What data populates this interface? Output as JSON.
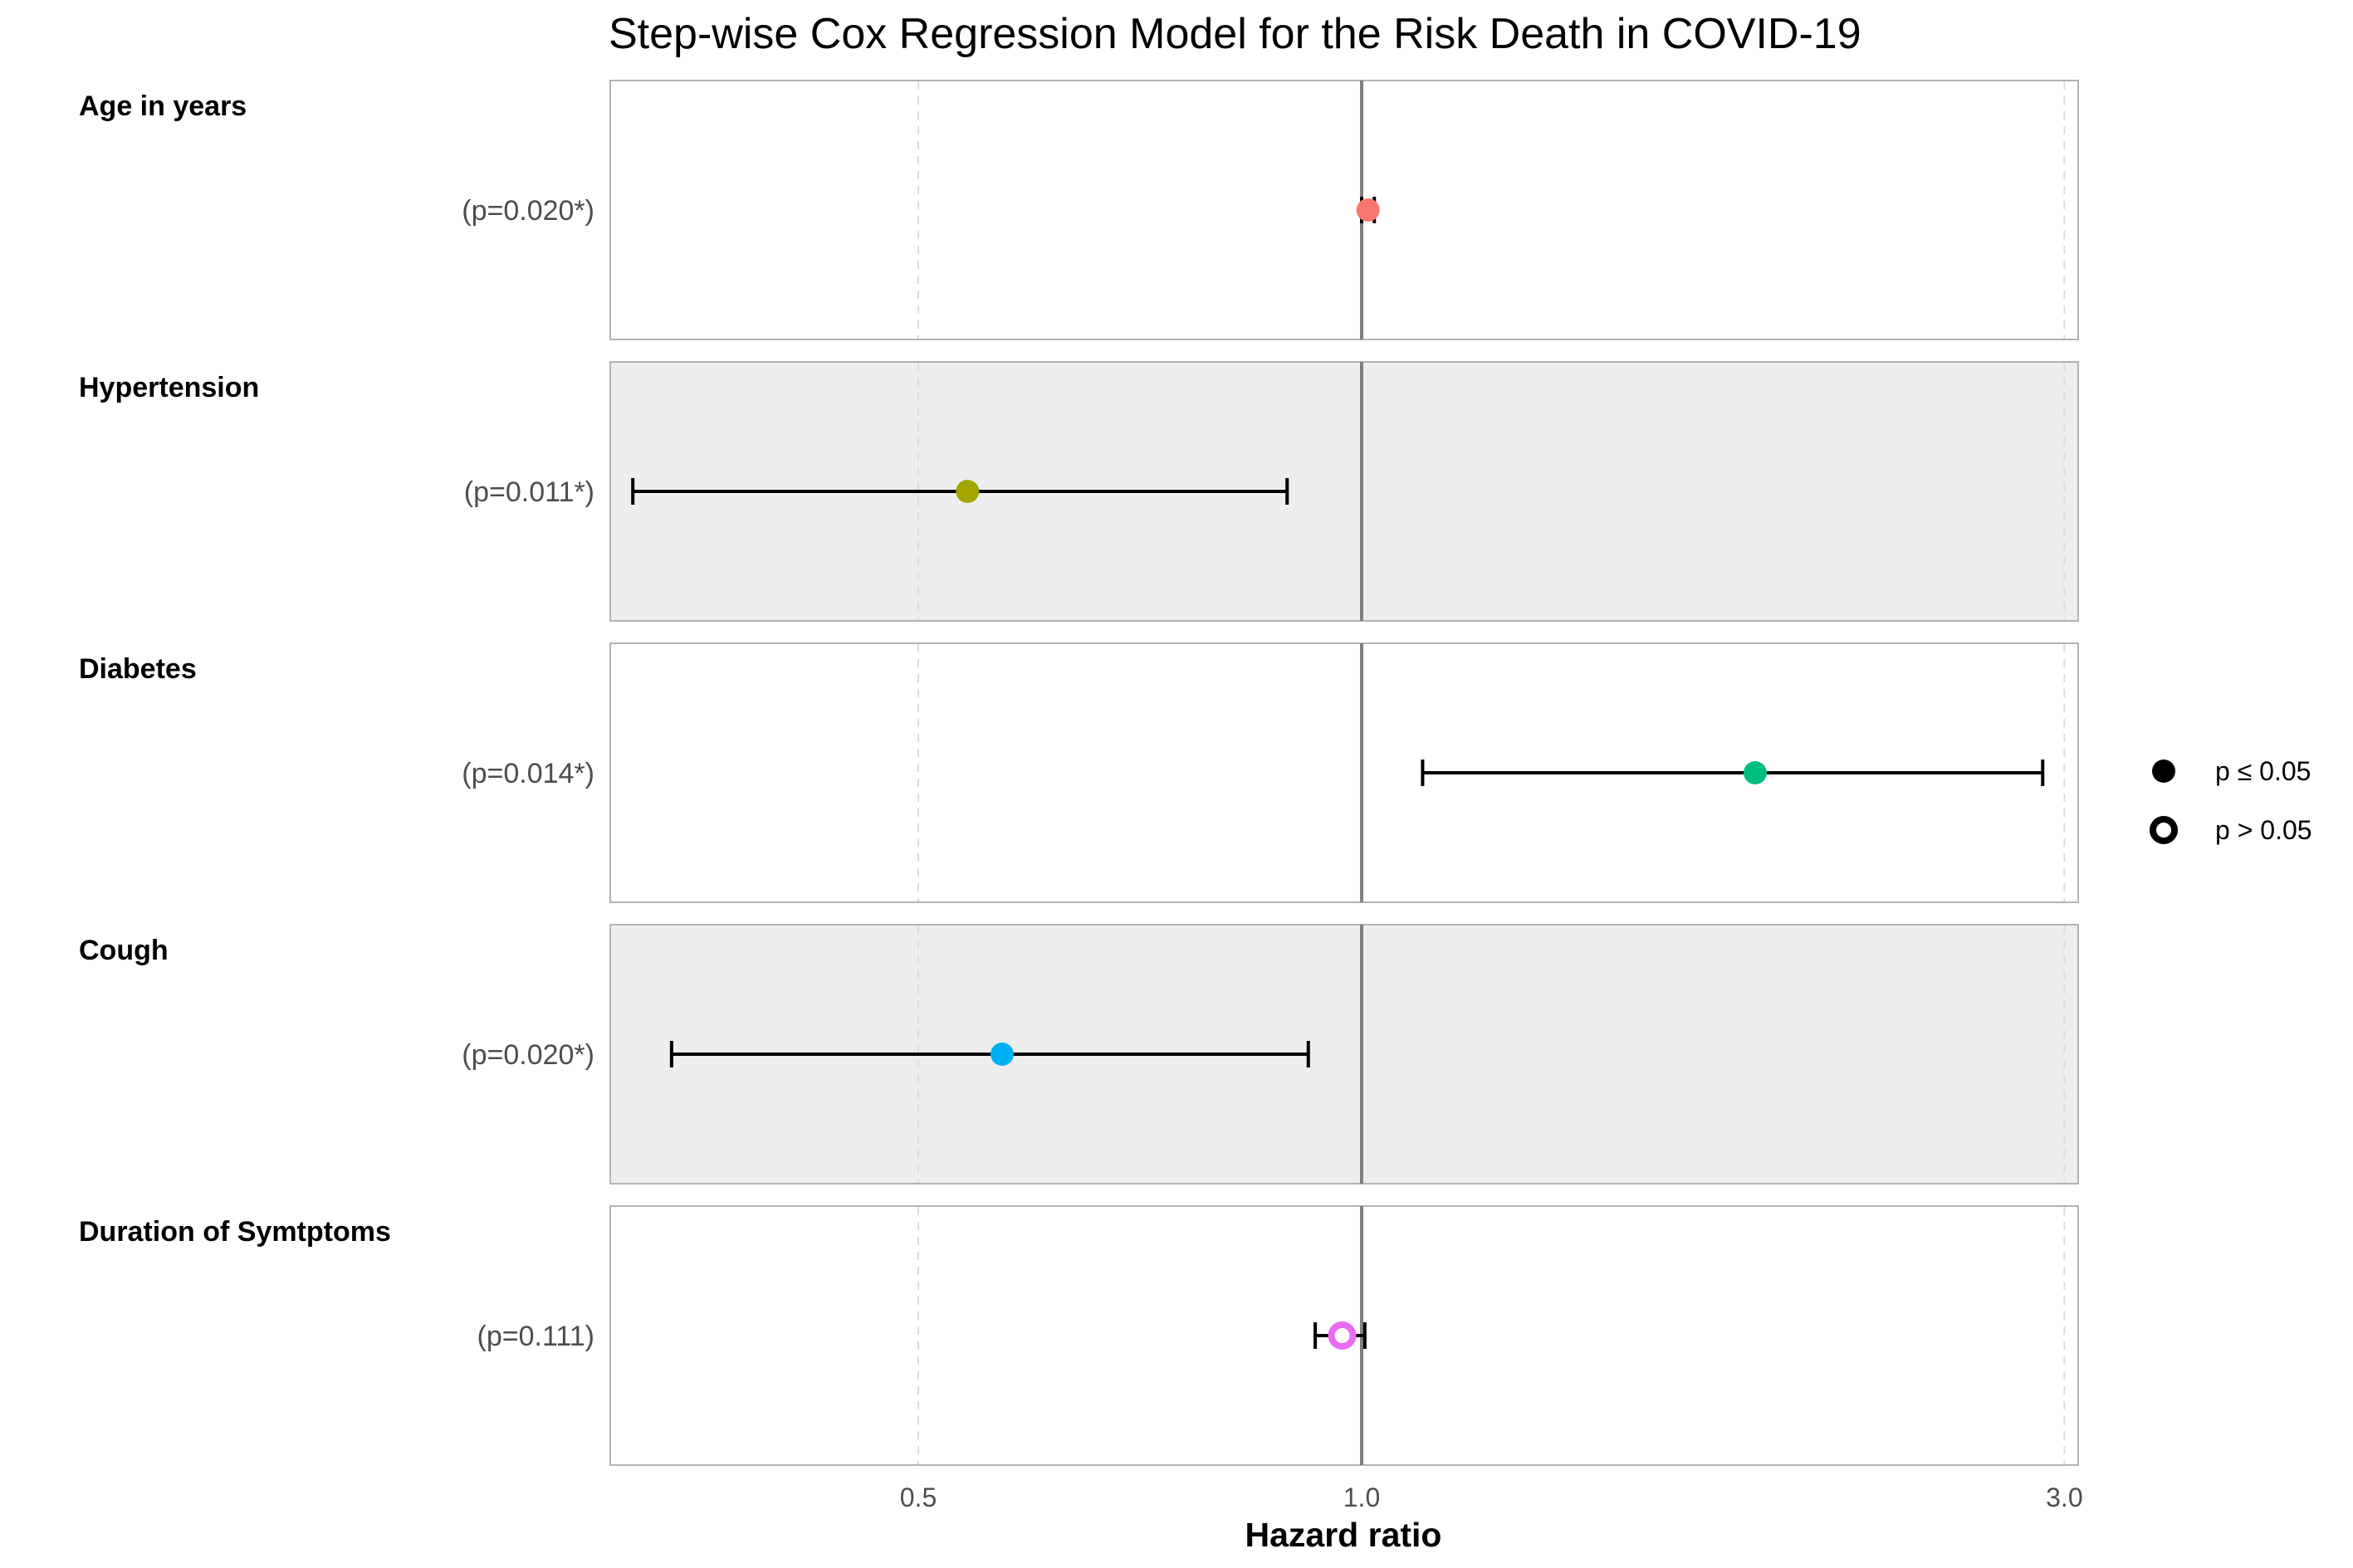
{
  "chart_data": {
    "type": "forest",
    "title": "Step-wise Cox Regression Model for the Risk Death in COVID-19",
    "xlabel": "Hazard ratio",
    "x_scale": "log",
    "xlim": [
      0.3,
      3.05
    ],
    "x_ticks": [
      {
        "value": 0.5,
        "label": "0.5"
      },
      {
        "value": 1.0,
        "label": "1.0"
      },
      {
        "value": 3.0,
        "label": "3.0"
      }
    ],
    "reference_line": 1.0,
    "rows": [
      {
        "name": "Age in years",
        "p_label": "(p=0.020*)",
        "hr": 1.01,
        "lower": 1.0,
        "upper": 1.02,
        "significant": true,
        "color": "#F8766D",
        "shaded": false
      },
      {
        "name": "Hypertension",
        "p_label": "(p=0.011*)",
        "hr": 0.54,
        "lower": 0.32,
        "upper": 0.89,
        "significant": true,
        "color": "#A3A500",
        "shaded": true
      },
      {
        "name": "Diabetes",
        "p_label": "(p=0.014*)",
        "hr": 1.85,
        "lower": 1.1,
        "upper": 2.9,
        "significant": true,
        "color": "#00BF7D",
        "shaded": false
      },
      {
        "name": "Cough",
        "p_label": "(p=0.020*)",
        "hr": 0.57,
        "lower": 0.34,
        "upper": 0.92,
        "significant": true,
        "color": "#00B0F6",
        "shaded": true
      },
      {
        "name": "Duration of Symtptoms",
        "p_label": "(p=0.111)",
        "hr": 0.97,
        "lower": 0.93,
        "upper": 1.005,
        "significant": false,
        "color": "#E76BF3",
        "shaded": false
      }
    ],
    "legend": {
      "position": "right",
      "items": [
        {
          "label": "p ≤ 0.05",
          "shape": "filled-circle"
        },
        {
          "label": "p > 0.05",
          "shape": "open-circle"
        }
      ]
    },
    "grid": "major-x-dashed"
  }
}
